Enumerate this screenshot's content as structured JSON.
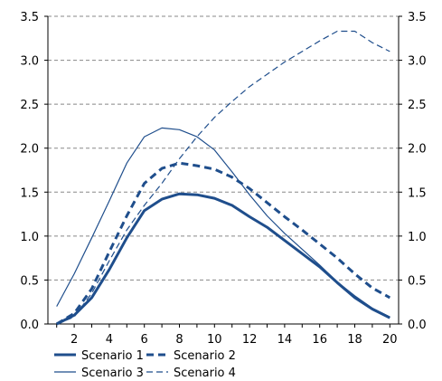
{
  "chart_data": {
    "type": "line",
    "title": "",
    "xlabel": "",
    "ylabel": "",
    "x": [
      1,
      2,
      3,
      4,
      5,
      6,
      7,
      8,
      9,
      10,
      11,
      12,
      13,
      14,
      15,
      16,
      17,
      18,
      19,
      20
    ],
    "xlim": [
      0.5,
      20.5
    ],
    "ylim": [
      0,
      3.5
    ],
    "x_ticks": [
      2,
      4,
      6,
      8,
      10,
      12,
      14,
      16,
      18,
      20
    ],
    "y_ticks": [
      0.0,
      0.5,
      1.0,
      1.5,
      2.0,
      2.5,
      3.0,
      3.5
    ],
    "y_tick_labels": [
      "0.0",
      "0.5",
      "1.0",
      "1.5",
      "2.0",
      "2.5",
      "3.0",
      "3.5"
    ],
    "y_axis_sides": [
      "left",
      "right"
    ],
    "grid": "horizontal dashed",
    "legend_position": "bottom",
    "color": "#1f4e8c",
    "series": [
      {
        "name": "Scenario 1",
        "style": "thick solid",
        "values": [
          0.0,
          0.1,
          0.3,
          0.62,
          0.98,
          1.29,
          1.42,
          1.48,
          1.47,
          1.43,
          1.35,
          1.22,
          1.1,
          0.95,
          0.8,
          0.65,
          0.47,
          0.3,
          0.17,
          0.07
        ]
      },
      {
        "name": "Scenario 2",
        "style": "thick dashed",
        "values": [
          0.0,
          0.12,
          0.4,
          0.82,
          1.23,
          1.6,
          1.77,
          1.83,
          1.8,
          1.76,
          1.67,
          1.54,
          1.38,
          1.22,
          1.07,
          0.91,
          0.75,
          0.57,
          0.41,
          0.3
        ]
      },
      {
        "name": "Scenario 3",
        "style": "thin solid",
        "values": [
          0.2,
          0.57,
          0.98,
          1.4,
          1.83,
          2.13,
          2.23,
          2.21,
          2.13,
          1.98,
          1.73,
          1.47,
          1.23,
          1.03,
          0.85,
          0.67,
          0.48,
          0.32,
          0.18,
          0.08
        ]
      },
      {
        "name": "Scenario 4",
        "style": "thin dashed",
        "values": [
          0.0,
          0.08,
          0.35,
          0.72,
          1.07,
          1.35,
          1.6,
          1.88,
          2.13,
          2.35,
          2.53,
          2.7,
          2.84,
          2.98,
          3.1,
          3.22,
          3.33,
          3.33,
          3.2,
          3.1
        ]
      }
    ]
  }
}
